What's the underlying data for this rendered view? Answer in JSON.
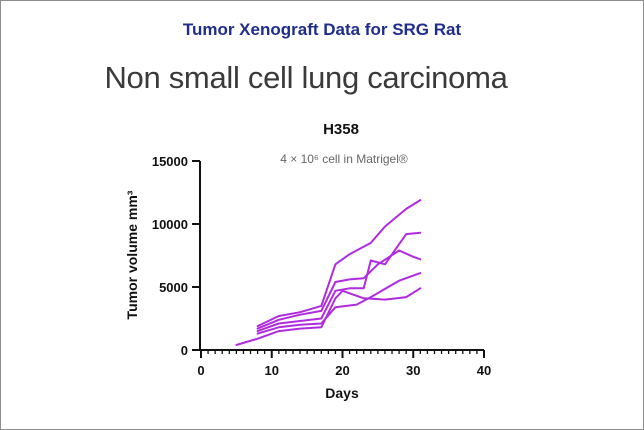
{
  "header": {
    "title": "Tumor Xenograft Data for SRG Rat",
    "subtitle": "Non small cell lung carcinoma"
  },
  "colors": {
    "header_title": "#1f2d8c",
    "series_line": "#b02be0",
    "axis": "#111111"
  },
  "chart_data": {
    "type": "line",
    "title": "H358",
    "subtitle": "4 × 10⁶ cell in Matrigel®",
    "xlabel": "Days",
    "ylabel": "Tumor volume mm³",
    "xlim": [
      0,
      40
    ],
    "ylim": [
      0,
      15000
    ],
    "xticks": [
      0,
      10,
      20,
      30,
      40
    ],
    "yticks": [
      0,
      5000,
      10000,
      15000
    ],
    "xtick_labels": [
      "0",
      "10",
      "20",
      "30",
      "40"
    ],
    "ytick_labels": [
      "0",
      "5000",
      "10000",
      "15000"
    ],
    "grid": false,
    "legend": false,
    "series": [
      {
        "x": [
          8,
          11,
          14,
          17,
          19,
          21,
          24,
          26,
          29,
          31
        ],
        "values": [
          1900,
          2700,
          3000,
          3500,
          6800,
          7600,
          8500,
          9800,
          11200,
          11900
        ]
      },
      {
        "x": [
          8,
          11,
          14,
          17,
          19,
          21,
          23,
          25,
          28,
          30,
          31
        ],
        "values": [
          1700,
          2400,
          2800,
          3100,
          5400,
          5600,
          5700,
          6800,
          7900,
          7400,
          7200
        ]
      },
      {
        "x": [
          8,
          11,
          14,
          17,
          19,
          21,
          23,
          24,
          26,
          29,
          31
        ],
        "values": [
          1500,
          2100,
          2300,
          2500,
          4700,
          4900,
          4900,
          7100,
          6800,
          9200,
          9300
        ]
      },
      {
        "x": [
          8,
          11,
          14,
          17,
          19,
          22,
          24,
          28,
          31
        ],
        "values": [
          1300,
          1800,
          2000,
          2100,
          3400,
          3600,
          4200,
          5500,
          6100
        ]
      },
      {
        "x": [
          5,
          8,
          11,
          14,
          17,
          19,
          20,
          23,
          26,
          29,
          31
        ],
        "values": [
          400,
          900,
          1500,
          1700,
          1800,
          4100,
          4700,
          4100,
          4000,
          4200,
          4900
        ]
      }
    ]
  }
}
